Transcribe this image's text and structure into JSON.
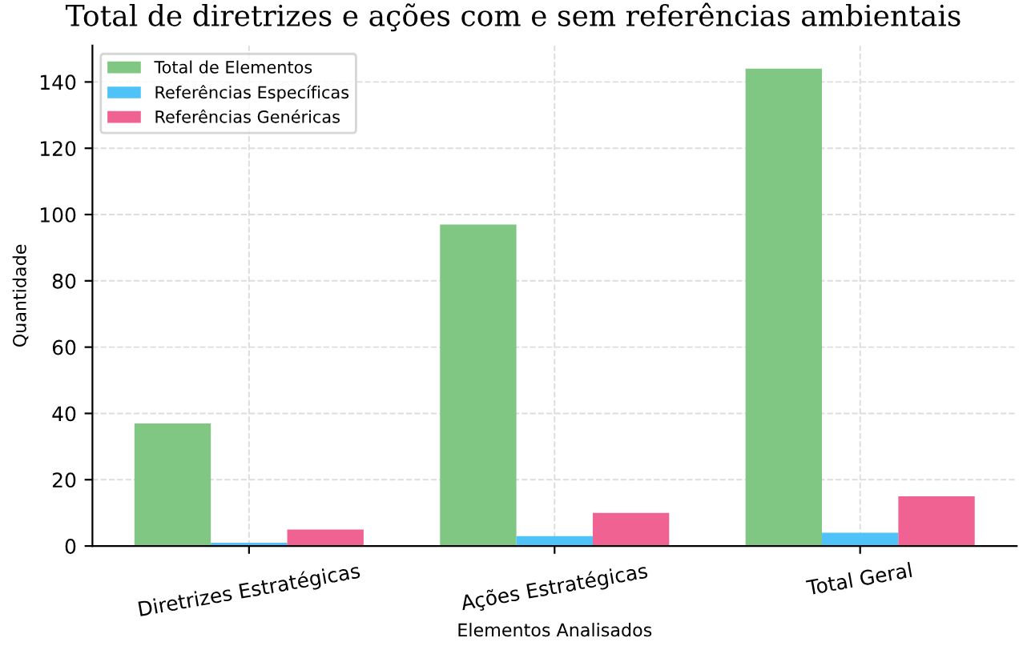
{
  "chart_data": {
    "type": "bar",
    "title": "Total de diretrizes e ações com e sem referências ambientais",
    "xlabel": "Elementos Analisados",
    "ylabel": "Quantidade",
    "categories": [
      "Diretrizes Estratégicas",
      "Ações Estratégicas",
      "Total Geral"
    ],
    "series": [
      {
        "name": "Total de Elementos",
        "color": "#81c784",
        "values": [
          37,
          97,
          144
        ]
      },
      {
        "name": "Referências Específicas",
        "color": "#4fc3f7",
        "values": [
          1,
          3,
          4
        ]
      },
      {
        "name": "Referências Genéricas",
        "color": "#f06292",
        "values": [
          5,
          10,
          15
        ]
      }
    ],
    "ylim": [
      0,
      151
    ],
    "yticks": [
      0,
      20,
      40,
      60,
      80,
      100,
      120,
      140
    ],
    "grid": true,
    "legend": "top left"
  }
}
